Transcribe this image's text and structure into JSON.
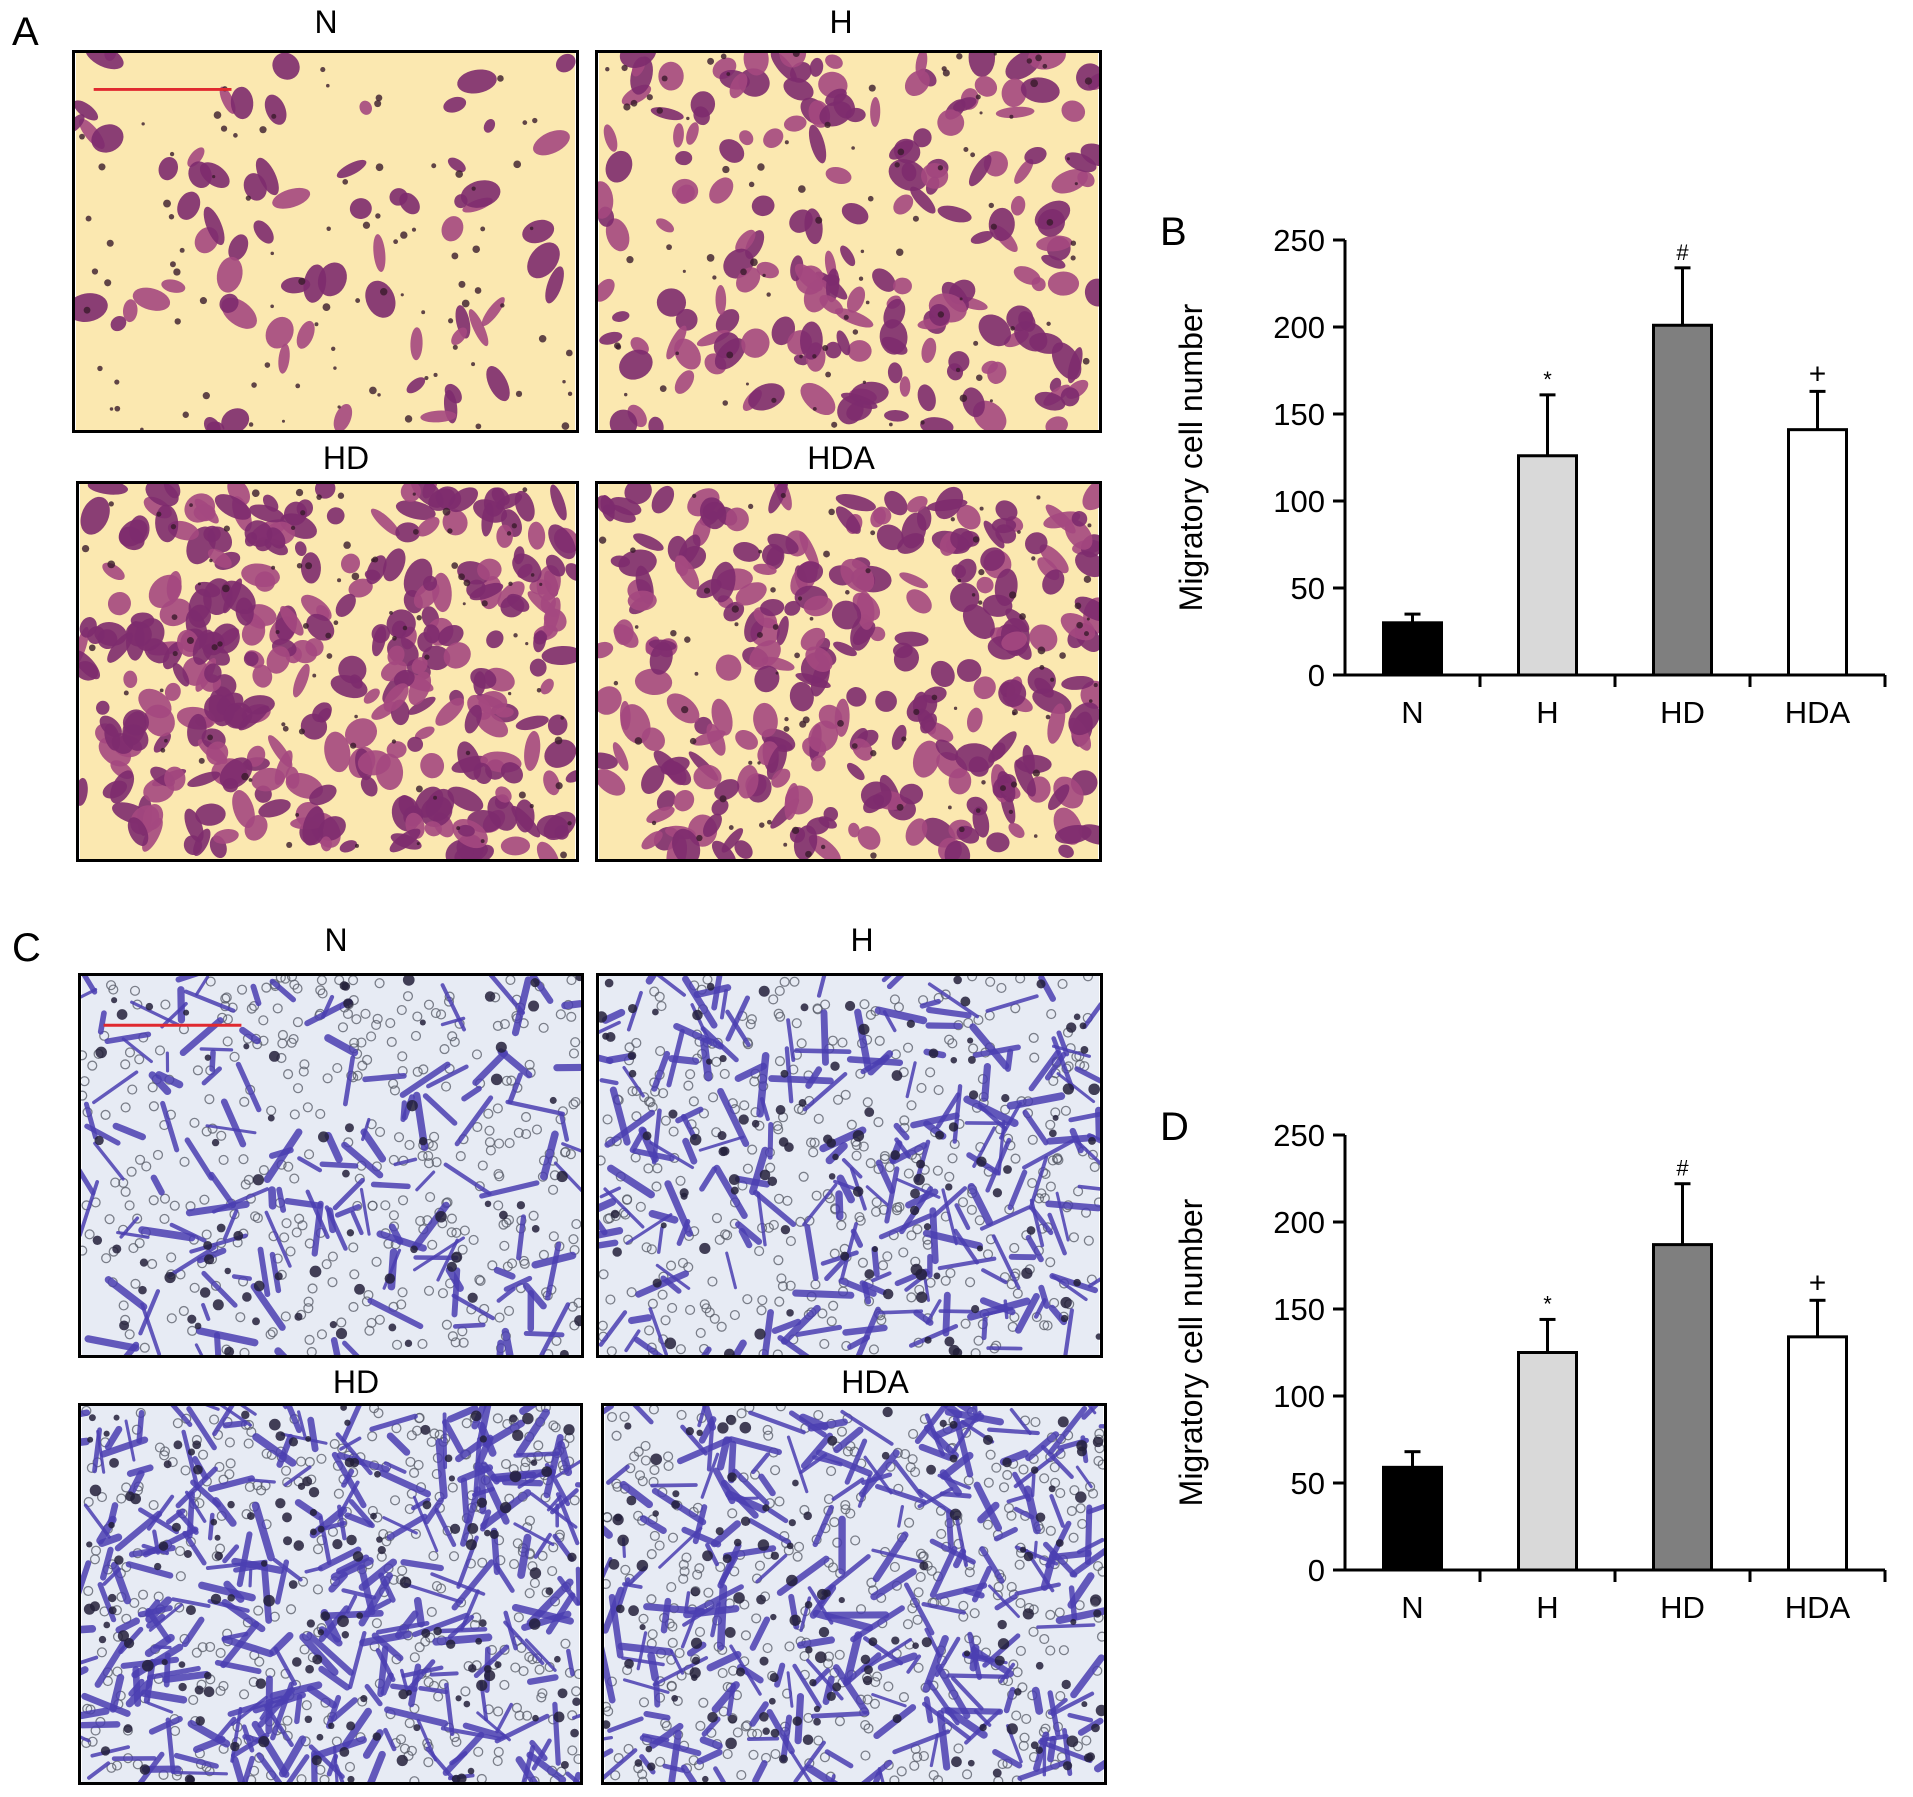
{
  "panel_a": {
    "letter": "A",
    "images": [
      {
        "title": "N"
      },
      {
        "title": "H"
      },
      {
        "title": "HD"
      },
      {
        "title": "HDA"
      }
    ]
  },
  "panel_c": {
    "letter": "C",
    "images": [
      {
        "title": "N"
      },
      {
        "title": "H"
      },
      {
        "title": "HD"
      },
      {
        "title": "HDA"
      }
    ]
  },
  "stain_colors": {
    "panel_a_background": "#fbe8b0",
    "panel_a_cell": "#7d2b6e",
    "panel_a_cell_light": "#a4487f",
    "panel_c_background": "#e7ebf4",
    "panel_c_cell": "#4b3fb2",
    "panel_c_dark": "#23203a",
    "scale_bar": "#e0292f"
  },
  "chart_data": [
    {
      "panel": "B",
      "type": "bar",
      "title": "",
      "xlabel": "",
      "ylabel": "Migratory cell number",
      "categories": [
        "N",
        "H",
        "HD",
        "HDA"
      ],
      "values": [
        30,
        126,
        201,
        141
      ],
      "error": [
        5,
        35,
        33,
        22
      ],
      "significance": [
        "",
        "*",
        "#",
        "+"
      ],
      "colors": [
        "#000000",
        "#d9d9d9",
        "#7f7f7f",
        "#ffffff"
      ],
      "ylim": [
        0,
        250
      ],
      "yticks": [
        "0",
        "50",
        "100",
        "150",
        "200",
        "250"
      ],
      "grid": false
    },
    {
      "panel": "D",
      "type": "bar",
      "title": "",
      "xlabel": "",
      "ylabel": "Migratory cell number",
      "categories": [
        "N",
        "H",
        "HD",
        "HDA"
      ],
      "values": [
        59,
        125,
        187,
        134
      ],
      "error": [
        9,
        19,
        35,
        21
      ],
      "significance": [
        "",
        "*",
        "#",
        "+"
      ],
      "colors": [
        "#000000",
        "#d9d9d9",
        "#7f7f7f",
        "#ffffff"
      ],
      "ylim": [
        0,
        250
      ],
      "yticks": [
        "0",
        "50",
        "100",
        "150",
        "200",
        "250"
      ],
      "grid": false
    }
  ]
}
